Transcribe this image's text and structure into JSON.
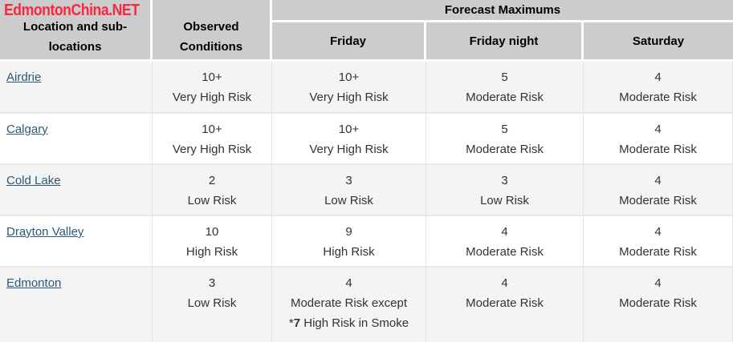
{
  "logo": "EdmontonChina.NET",
  "colors": {
    "logo_red": "#fb2642",
    "link_blue": "#2d5875",
    "header_gray": "#cccccc",
    "row_stripe": "#f4f4f4",
    "border_gray": "#e7e7e7"
  },
  "header": {
    "location_col": "Location and sub-locations",
    "observed_col": "Observed Conditions",
    "forecast_group": "Forecast Maximums",
    "forecast_cols": [
      "Friday",
      "Friday night",
      "Saturday"
    ]
  },
  "rows": [
    {
      "location": "Airdrie",
      "observed": {
        "value": "10+",
        "label": "Very High Risk"
      },
      "friday": {
        "value": "10+",
        "label": "Very High Risk"
      },
      "friday_night": {
        "value": "5",
        "label": "Moderate Risk"
      },
      "saturday": {
        "value": "4",
        "label": "Moderate Risk"
      }
    },
    {
      "location": "Calgary",
      "observed": {
        "value": "10+",
        "label": "Very High Risk"
      },
      "friday": {
        "value": "10+",
        "label": "Very High Risk"
      },
      "friday_night": {
        "value": "5",
        "label": "Moderate Risk"
      },
      "saturday": {
        "value": "4",
        "label": "Moderate Risk"
      }
    },
    {
      "location": "Cold Lake",
      "observed": {
        "value": "2",
        "label": "Low Risk"
      },
      "friday": {
        "value": "3",
        "label": "Low Risk"
      },
      "friday_night": {
        "value": "3",
        "label": "Low Risk"
      },
      "saturday": {
        "value": "4",
        "label": "Moderate Risk"
      }
    },
    {
      "location": "Drayton Valley",
      "observed": {
        "value": "10",
        "label": "High Risk"
      },
      "friday": {
        "value": "9",
        "label": "High Risk"
      },
      "friday_night": {
        "value": "4",
        "label": "Moderate Risk"
      },
      "saturday": {
        "value": "4",
        "label": "Moderate Risk"
      }
    },
    {
      "location": "Edmonton",
      "observed": {
        "value": "3",
        "label": "Low Risk"
      },
      "friday": {
        "value": "4",
        "label": "Moderate Risk except",
        "extra_prefix": "*",
        "extra_bold": "7",
        "extra_suffix": " High Risk in Smoke"
      },
      "friday_night": {
        "value": "4",
        "label": "Moderate Risk"
      },
      "saturday": {
        "value": "4",
        "label": "Moderate Risk"
      }
    }
  ]
}
